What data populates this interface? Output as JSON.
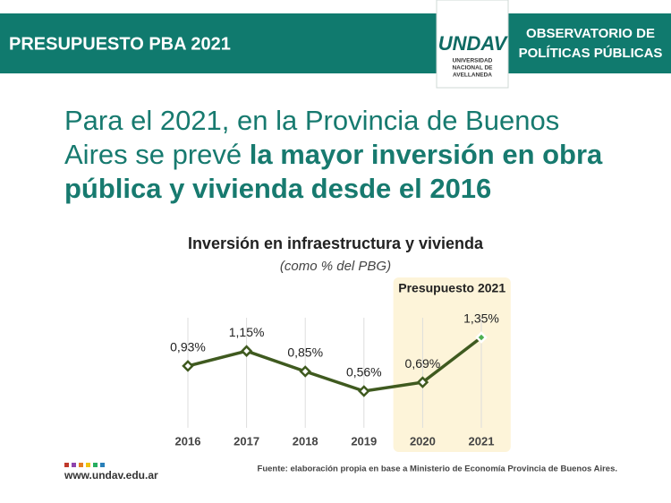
{
  "header": {
    "title": "PRESUPUESTO PBA 2021",
    "right_lines": [
      "OBSERVATORIO DE",
      "POLÍTICAS PÚBLICAS"
    ]
  },
  "logo": {
    "name": "UNDAV",
    "lines": [
      "UNIVERSIDAD",
      "NACIONAL DE",
      "AVELLANEDA"
    ]
  },
  "headline": {
    "text": "Para el 2021, en la Provincia de Buenos Aires se prevé ",
    "bold": "la mayor inversión en obra pública y vivienda desde el 2016"
  },
  "chart_data": {
    "type": "line",
    "title": "Inversión en infraestructura y vivienda",
    "subtitle": "(como % del PBG)",
    "categories": [
      "2016",
      "2017",
      "2018",
      "2019",
      "2020",
      "2021"
    ],
    "series": [
      {
        "name": "Inversión",
        "color": "#3f5a1f",
        "values": [
          0.93,
          1.15,
          0.85,
          0.56,
          0.69,
          1.35
        ],
        "value_labels": [
          "0,93%",
          "1,15%",
          "0,85%",
          "0,56%",
          "0,69%",
          "1,35%"
        ]
      }
    ],
    "highlight": {
      "label": "Presupuesto 2021",
      "categories": [
        "2020",
        "2021"
      ],
      "color": "#fdf4d9",
      "marker_color": "#4caf50"
    },
    "grid": true
  },
  "footer": {
    "url": "www.undav.edu.ar",
    "source": "Fuente: elaboración propia en base a Ministerio de Economía Provincia de Buenos Aires."
  }
}
